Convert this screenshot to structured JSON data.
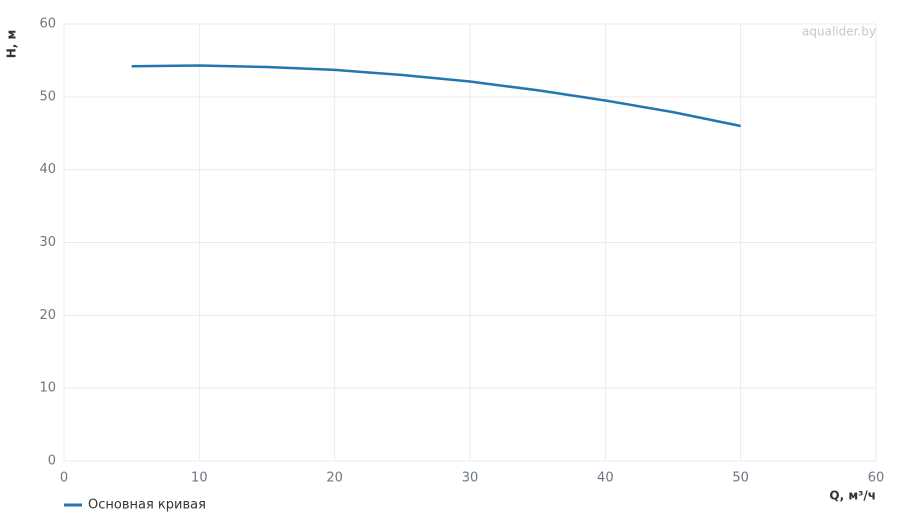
{
  "chart_data": {
    "type": "line",
    "watermark": "aqualider.by",
    "x_label": "Q, м³/ч",
    "y_label": "H, м",
    "x": [
      5,
      10,
      15,
      20,
      25,
      30,
      35,
      40,
      45,
      50
    ],
    "series": [
      {
        "name": "Основная кривая",
        "color": "#2277b0",
        "values": [
          54.2,
          54.3,
          54.1,
          53.7,
          53.0,
          52.1,
          50.9,
          49.5,
          47.9,
          46.0
        ]
      }
    ],
    "xlim": [
      0,
      60
    ],
    "xticks": [
      0,
      10,
      20,
      30,
      40,
      50,
      60
    ],
    "ylim": [
      0,
      60
    ],
    "yticks": [
      0,
      10,
      20,
      30,
      40,
      50,
      60
    ],
    "grid": true
  }
}
